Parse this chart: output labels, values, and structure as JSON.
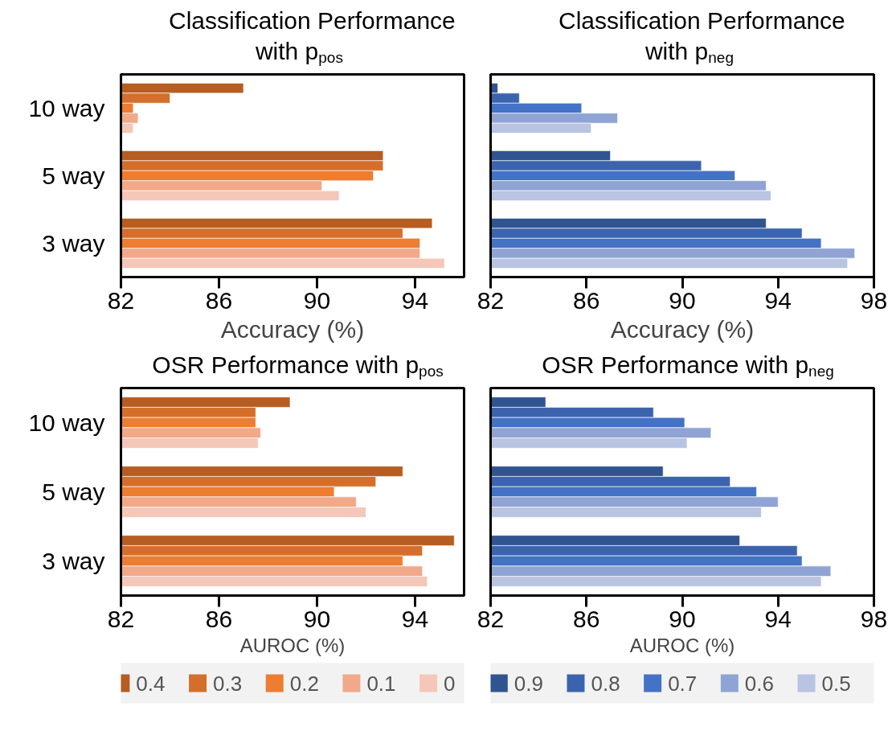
{
  "chart_data": [
    {
      "type": "bar",
      "orientation": "horizontal",
      "title": "Classification Performance with p$_{pos}$",
      "xlabel": "Accuracy (%)",
      "categories": [
        "10 way",
        "5 way",
        "3 way"
      ],
      "xlim": [
        82,
        96
      ],
      "xticks": [
        82,
        86,
        90,
        94
      ],
      "legend": "bottom",
      "series": [
        {
          "name": "0.4",
          "color": "#b55d22",
          "values": [
            87.0,
            92.7,
            94.7
          ]
        },
        {
          "name": "0.3",
          "color": "#d46f2b",
          "values": [
            84.0,
            92.7,
            93.5
          ]
        },
        {
          "name": "0.2",
          "color": "#ed7d31",
          "values": [
            82.5,
            92.3,
            94.2
          ]
        },
        {
          "name": "0.1",
          "color": "#f1a98a",
          "values": [
            82.7,
            90.2,
            94.2
          ]
        },
        {
          "name": "0",
          "color": "#f5c7b8",
          "values": [
            82.5,
            90.9,
            95.2
          ]
        }
      ]
    },
    {
      "type": "bar",
      "orientation": "horizontal",
      "title": "Classification Performance with p$_{neg}$",
      "xlabel": "Accuracy (%)",
      "categories": [
        "10 way",
        "5 way",
        "3 way"
      ],
      "xlim": [
        82,
        98
      ],
      "xticks": [
        82,
        86,
        90,
        94,
        98
      ],
      "tick_labels": "x",
      "legend": "bottom",
      "series": [
        {
          "name": "0.9",
          "color": "#305490",
          "values": [
            82.3,
            87.0,
            93.5
          ]
        },
        {
          "name": "0.8",
          "color": "#3c64ae",
          "values": [
            83.2,
            90.8,
            95.0
          ]
        },
        {
          "name": "0.7",
          "color": "#4472c4",
          "values": [
            85.8,
            92.2,
            95.8
          ]
        },
        {
          "name": "0.6",
          "color": "#8fa4d4",
          "values": [
            87.3,
            93.5,
            97.2
          ]
        },
        {
          "name": "0.5",
          "color": "#b9c4e3",
          "values": [
            86.2,
            93.7,
            96.9
          ]
        }
      ]
    },
    {
      "type": "bar",
      "orientation": "horizontal",
      "title": "OSR Performance with p$_{pos}$",
      "xlabel": "AUROC (%)",
      "categories": [
        "10 way",
        "5 way",
        "3 way"
      ],
      "xlim": [
        82,
        96
      ],
      "xticks": [
        82,
        86,
        90,
        94
      ],
      "series": [
        {
          "color": "#b55d22",
          "values": [
            88.9,
            93.5,
            95.6
          ]
        },
        {
          "color": "#d46f2b",
          "values": [
            87.5,
            92.4,
            94.3
          ]
        },
        {
          "color": "#ed7d31",
          "values": [
            87.5,
            90.7,
            93.5
          ]
        },
        {
          "color": "#f1a98a",
          "values": [
            87.7,
            91.6,
            94.3
          ]
        },
        {
          "color": "#f5c7b8",
          "values": [
            87.6,
            92.0,
            94.5
          ]
        }
      ]
    },
    {
      "type": "bar",
      "orientation": "horizontal",
      "title": "OSR Performance with p$_{neg}$",
      "xlabel": "AUROC (%)",
      "categories": [
        "10 way",
        "5 way",
        "3 way"
      ],
      "xlim": [
        82,
        98
      ],
      "xticks": [
        82,
        86,
        90,
        94,
        98
      ],
      "tick_labels": "x",
      "series": [
        {
          "color": "#305490",
          "values": [
            84.3,
            89.2,
            92.4
          ]
        },
        {
          "color": "#3c64ae",
          "values": [
            88.8,
            92.0,
            94.8
          ]
        },
        {
          "color": "#4472c4",
          "values": [
            90.1,
            93.1,
            95.0
          ]
        },
        {
          "color": "#8fa4d4",
          "values": [
            91.2,
            94.0,
            96.2
          ]
        },
        {
          "color": "#b9c4e3",
          "values": [
            90.2,
            93.3,
            95.8
          ]
        }
      ]
    }
  ]
}
